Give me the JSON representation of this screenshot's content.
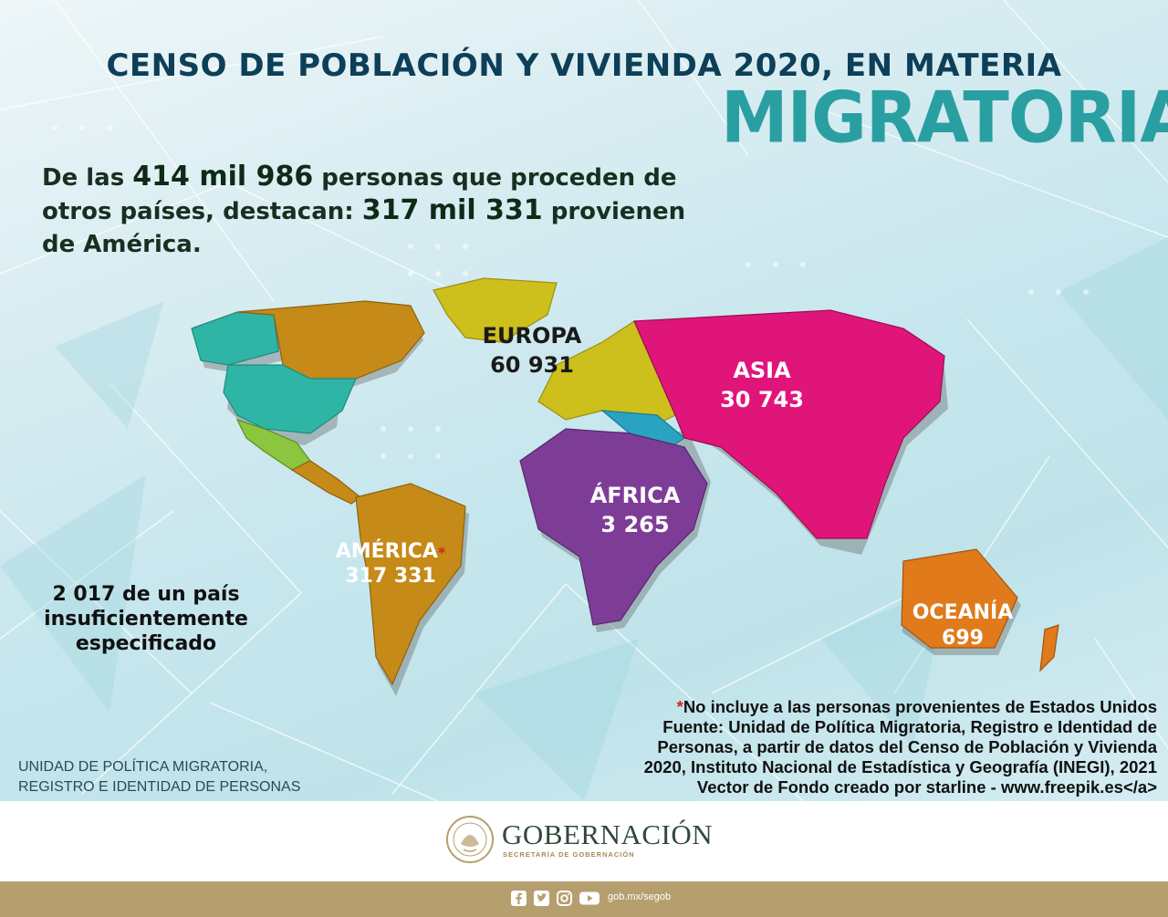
{
  "title": {
    "line1": "CENSO DE POBLACIÓN Y VIVIENDA 2020, EN MATERIA",
    "line2": "MIGRATORIA"
  },
  "intro": {
    "p1": "De las ",
    "total": "414 mil 986",
    "p2": " personas que proceden de otros países, destacan: ",
    "america_total": "317 mil 331",
    "p3": " provienen de América."
  },
  "regions": {
    "europa": {
      "name": "EUROPA",
      "value": "60 931",
      "color": "#cdbf1c"
    },
    "asia": {
      "name": "ASIA",
      "value": "30 743",
      "color": "#e0157a"
    },
    "africa": {
      "name": "ÁFRICA",
      "value": "3 265",
      "color": "#7d3d97"
    },
    "america": {
      "name": "AMÉRICA",
      "star": "*",
      "value": "317 331",
      "color": "#c58a18"
    },
    "oceania": {
      "name": "OCEANÍA",
      "value": "699",
      "color": "#e07a1a"
    }
  },
  "map_colors": {
    "canada_west": "#2fb5a5",
    "usa": "#2fb5a5",
    "mexico": "#8cc63f",
    "caribbean": "#2fb5a5",
    "middle_east": "#2aa3c2"
  },
  "unspecified": {
    "value": "2 017",
    "text": " de un país insuficientemente especificado"
  },
  "unit_name": {
    "line1": "UNIDAD DE POLÍTICA MIGRATORIA,",
    "line2": "REGISTRO E IDENTIDAD DE PERSONAS"
  },
  "notes": {
    "star": "*",
    "line1": "No incluye a  las personas provenientes de Estados Unidos",
    "line2": "Fuente: Unidad de Política Migratoria, Registro e Identidad de",
    "line3": "Personas, a partir de datos del Censo de Población y Vivienda",
    "line4": "2020, Instituto Nacional de Estadística y Geografía (INEGI), 2021",
    "line5": "Vector de Fondo creado por starline - www.freepik.es</a>"
  },
  "footer": {
    "brand": "GOBERNACIÓN",
    "subtitle": "SECRETARÍA DE GOBERNACIÓN",
    "handle": "gob.mx/segob",
    "icons": [
      "facebook-icon",
      "twitter-icon",
      "instagram-icon",
      "youtube-icon"
    ],
    "bar_color": "#b59f6e"
  }
}
